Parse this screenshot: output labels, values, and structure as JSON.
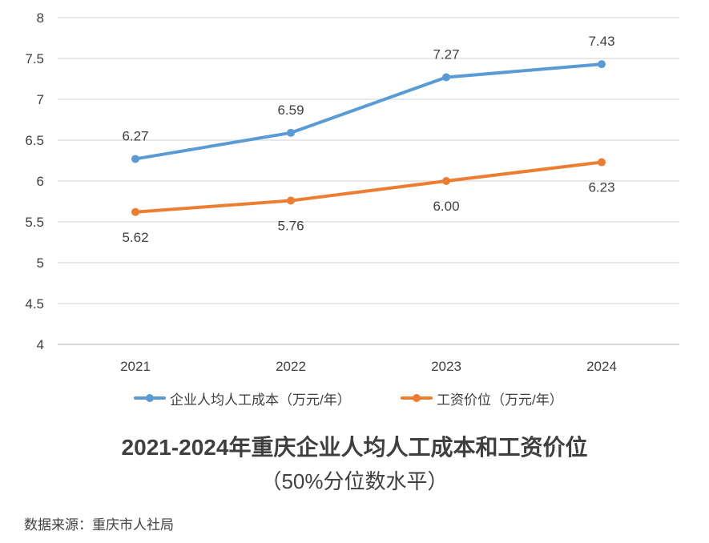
{
  "chart_data": {
    "type": "line",
    "title": "2021-2024年重庆企业人均人工成本和工资价位",
    "subtitle": "（50%分位数水平）",
    "xlabel": "",
    "ylabel": "",
    "categories": [
      "2021",
      "2022",
      "2023",
      "2024"
    ],
    "ylim": [
      4,
      8
    ],
    "y_ticks": [
      8,
      7.5,
      7,
      6.5,
      6,
      5.5,
      5,
      4.5,
      4
    ],
    "grid": true,
    "legend_position": "bottom",
    "series": [
      {
        "name": "企业人均人工成本（万元/年）",
        "color": "#5B9BD5",
        "values": [
          6.27,
          6.59,
          7.27,
          7.43
        ],
        "labels": [
          "6.27",
          "6.59",
          "7.27",
          "7.43"
        ],
        "label_position": "above"
      },
      {
        "name": "工资价位（万元/年）",
        "color": "#ED7D31",
        "values": [
          5.62,
          5.76,
          6.0,
          6.23
        ],
        "labels": [
          "5.62",
          "5.76",
          "6.00",
          "6.23"
        ],
        "label_position": "below"
      }
    ]
  },
  "source": "数据来源：重庆市人社局"
}
